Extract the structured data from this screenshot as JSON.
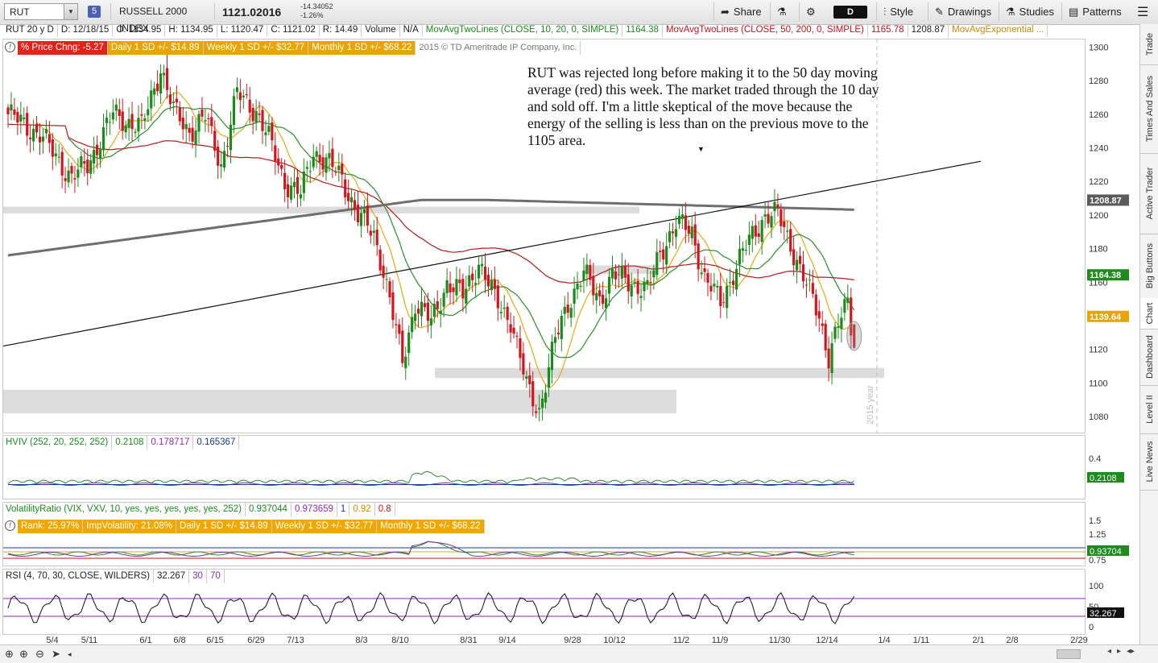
{
  "toolbar": {
    "symbol": "RUT",
    "link_number": "5",
    "instrument_name": "RUSSELL 2000 INDEX",
    "last_price": "1121.02016",
    "net_change": "-14.34052",
    "pct_change": "-1.26%",
    "share_label": "Share",
    "aggregation": "D",
    "style_label": "Style",
    "drawings_label": "Drawings",
    "studies_label": "Studies",
    "patterns_label": "Patterns"
  },
  "price_header": {
    "timeframe": "RUT 20 y D",
    "date": "D: 12/18/15",
    "open": "O: 1134.95",
    "high": "H: 1134.95",
    "low": "L: 1120.47",
    "close": "C: 1121.02",
    "range": "R: 14.49",
    "volume": "Volume",
    "volume_val": "N/A",
    "ma1_label": "MovAvgTwoLines (CLOSE, 10, 20, 0, SIMPLE)",
    "ma1_value": "1164.38",
    "ma2_label": "MovAvgTwoLines (CLOSE, 50, 200, 0, SIMPLE)",
    "ma2_value1": "1165.78",
    "ma2_value2": "1208.87",
    "ma3_label": "MovAvgExponential ...",
    "pct_price_chg": "% Price Chng: -5.27",
    "daily_sd": "Daily 1 SD +/- $14.89",
    "weekly_sd": "Weekly 1 SD +/- $32.77",
    "monthly_sd": "Monthly 1 SD +/- $68.22",
    "copyright": "2015 © TD Ameritrade IP Company, Inc."
  },
  "annotation": {
    "text": "RUT was rejected long before making it to the 50 day moving average (red) this week.  The market traded through the 10 day and sold off.  I'm a little skeptical of the move because the energy of the selling is less than on the previous move to the 1105 area."
  },
  "year_marker": "2015 year",
  "hviv": {
    "label": "HVIV (252, 20, 252, 252)",
    "v1": "0.2108",
    "v2": "0.178717",
    "v3": "0.165367",
    "axis_tick": "0.4",
    "marker": "0.2108"
  },
  "volratio": {
    "label": "VolatilityRatio (VIX, VXV, 10, yes, yes, yes, yes, yes, 252)",
    "v1": "0.937044",
    "v2": "0.973659",
    "v3": "1",
    "v4": "0.92",
    "v5": "0.8",
    "rank": "Rank: 25.97%",
    "impvol": "ImpVolatility: 21.08%",
    "daily_sd": "Daily 1 SD +/- $14.89",
    "weekly_sd": "Weekly 1 SD +/- $32.77",
    "monthly_sd": "Monthly 1 SD +/- $68.22",
    "ticks": [
      "1.5",
      "1.25",
      "0.75"
    ],
    "marker": "0.93704"
  },
  "rsi": {
    "label": "RSI (4, 70, 30, CLOSE, WILDERS)",
    "v1": "32.267",
    "v2": "30",
    "v3": "70",
    "ticks": [
      "100",
      "50",
      "0"
    ],
    "marker": "32.267"
  },
  "right_tabs": [
    "Trade",
    "Times And Sales",
    "Active Trader",
    "Big Buttons",
    "Chart",
    "Dashboard",
    "Level II",
    "Live News"
  ],
  "colors": {
    "up": "#1a8c1a",
    "down": "#d0161e",
    "ma10": "#e6a817",
    "ma20": "#2e8b2e",
    "ma50": "#b01c1c",
    "ma200": "#6e6e6e",
    "zone": "#dcdcdc"
  },
  "chart_data": {
    "type": "candlestick",
    "symbol": "RUT",
    "period": "Daily",
    "ylim": [
      1070,
      1305
    ],
    "y_ticks": [
      1080,
      1100,
      1120,
      1140,
      1160,
      1180,
      1200,
      1220,
      1240,
      1260,
      1280,
      1300
    ],
    "x_ticks": [
      "5/4",
      "5/11",
      "6/1",
      "6/8",
      "6/15",
      "6/29",
      "7/13",
      "8/3",
      "8/10",
      "8/31",
      "9/14",
      "9/28",
      "10/12",
      "11/2",
      "11/9",
      "11/30",
      "12/14",
      "1/4",
      "1/11",
      "2/1",
      "2/8",
      "2/29"
    ],
    "price_markers": [
      {
        "label": "1208.87",
        "value": 1208.87,
        "color": "#5a5a5a"
      },
      {
        "label": "1164.38",
        "value": 1164.38,
        "color": "#1f8b1f"
      },
      {
        "label": "1139.64",
        "value": 1139.64,
        "color": "#e8a400"
      }
    ],
    "anchors": [
      [
        0,
        1260
      ],
      [
        10,
        1248
      ],
      [
        20,
        1222
      ],
      [
        25,
        1230
      ],
      [
        33,
        1260
      ],
      [
        42,
        1252
      ],
      [
        48,
        1288
      ],
      [
        52,
        1262
      ],
      [
        57,
        1250
      ],
      [
        62,
        1258
      ],
      [
        67,
        1230
      ],
      [
        72,
        1272
      ],
      [
        78,
        1262
      ],
      [
        82,
        1245
      ],
      [
        87,
        1220
      ],
      [
        92,
        1212
      ],
      [
        96,
        1238
      ],
      [
        100,
        1232
      ],
      [
        105,
        1222
      ],
      [
        110,
        1200
      ],
      [
        115,
        1188
      ],
      [
        118,
        1168
      ],
      [
        124,
        1112
      ],
      [
        128,
        1148
      ],
      [
        133,
        1136
      ],
      [
        138,
        1160
      ],
      [
        143,
        1152
      ],
      [
        148,
        1172
      ],
      [
        153,
        1150
      ],
      [
        158,
        1138
      ],
      [
        163,
        1098
      ],
      [
        167,
        1084
      ],
      [
        172,
        1125
      ],
      [
        176,
        1148
      ],
      [
        181,
        1165
      ],
      [
        186,
        1150
      ],
      [
        190,
        1164
      ],
      [
        196,
        1160
      ],
      [
        201,
        1155
      ],
      [
        205,
        1178
      ],
      [
        210,
        1195
      ],
      [
        215,
        1190
      ],
      [
        219,
        1162
      ],
      [
        224,
        1148
      ],
      [
        229,
        1170
      ],
      [
        234,
        1188
      ],
      [
        238,
        1200
      ],
      [
        242,
        1200
      ],
      [
        246,
        1183
      ],
      [
        251,
        1158
      ],
      [
        255,
        1140
      ],
      [
        258,
        1116
      ],
      [
        261,
        1134
      ],
      [
        264,
        1148
      ],
      [
        266,
        1121.02
      ]
    ],
    "ma_periods": [
      10,
      20,
      50,
      200
    ],
    "trendlines": [
      {
        "from": [
          "4/27",
          1122
        ],
        "to": [
          "2/1",
          1232
        ]
      },
      {
        "from": [
          "4/27",
          1176
        ],
        "to": [
          "12/18",
          1209
        ]
      }
    ],
    "zones": [
      {
        "range": [
          1201,
          1205
        ],
        "to": "10/26"
      },
      {
        "range": [
          1165,
          1170
        ],
        "to": "11/2"
      },
      {
        "range": [
          1103,
          1109
        ],
        "to": "1/4"
      },
      {
        "range": [
          1082,
          1096
        ],
        "to": "11/2"
      }
    ]
  }
}
